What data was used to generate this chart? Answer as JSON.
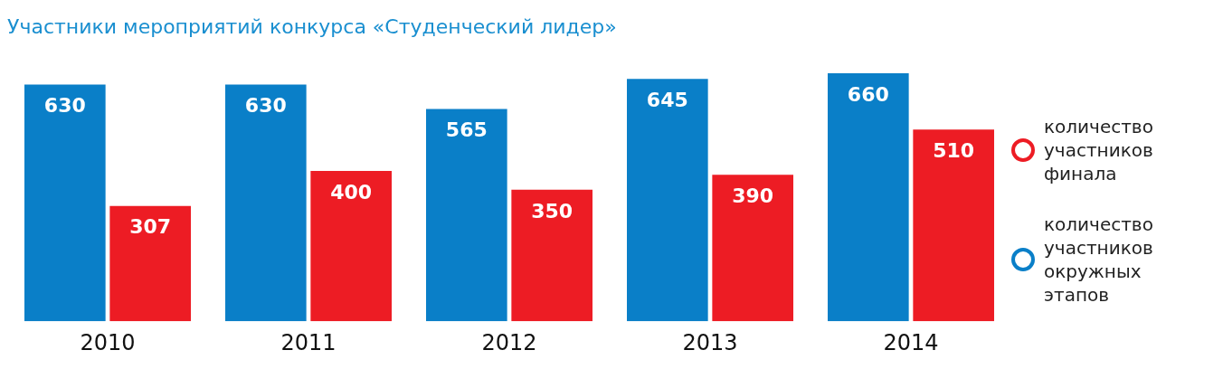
{
  "chart_data": {
    "type": "bar",
    "title": "Участники мероприятий конкурса «Студенческий лидер»",
    "categories": [
      "2010",
      "2011",
      "2012",
      "2013",
      "2014"
    ],
    "series": [
      {
        "name": "количество участников окружных этапов",
        "color": "#0a7fc8",
        "values": [
          630,
          630,
          565,
          645,
          660
        ]
      },
      {
        "name": "количество участников финала",
        "color": "#ed1c24",
        "values": [
          307,
          400,
          350,
          390,
          510
        ]
      }
    ],
    "data_labels": true,
    "legend": "right",
    "grid": false
  }
}
